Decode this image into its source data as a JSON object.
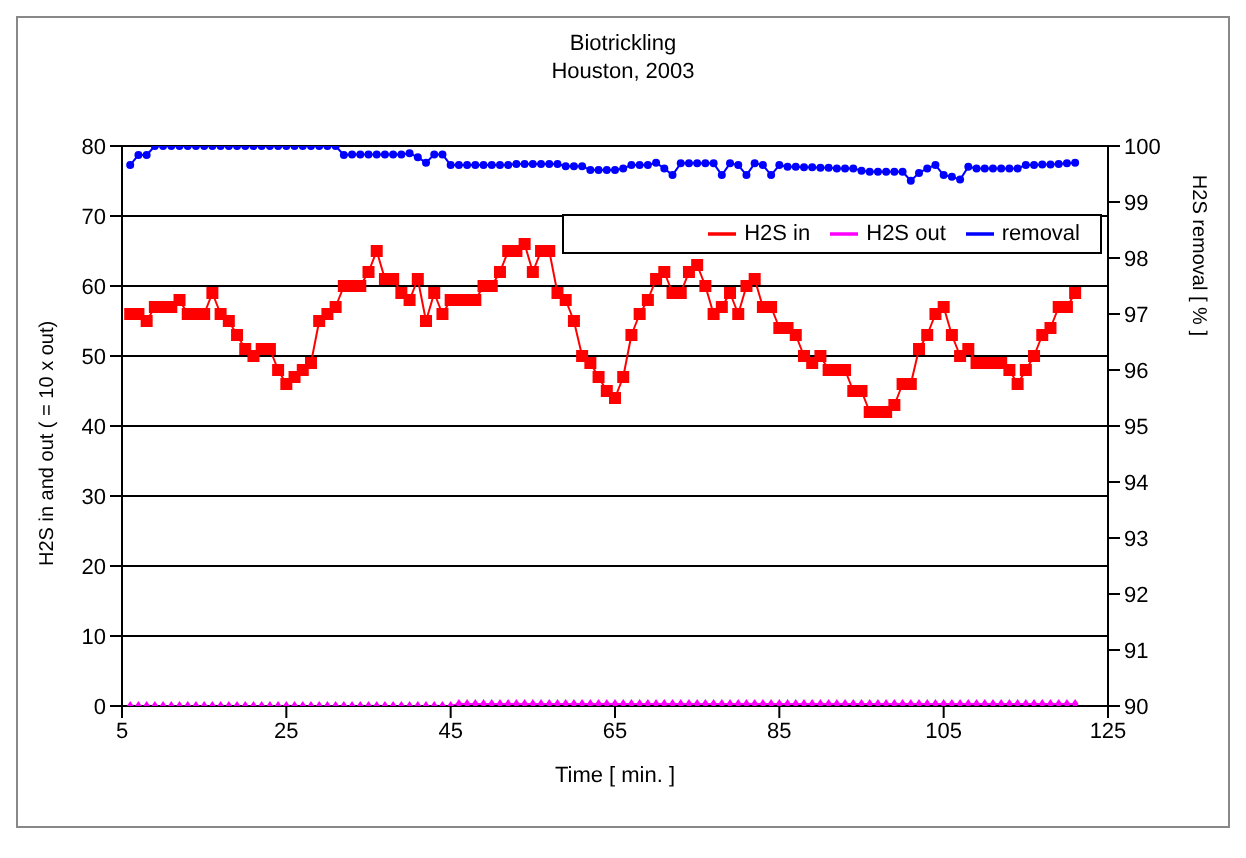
{
  "chart_data": {
    "type": "line",
    "title": "Biotrickling",
    "subtitle": "Houston, 2003",
    "xlabel": "Time [ min. ]",
    "ylabel": "H2S in and out  ( = 10 x out)",
    "y2label": "H2S removal [ % ]",
    "x": [
      6,
      7,
      8,
      9,
      10,
      11,
      12,
      13,
      14,
      15,
      16,
      17,
      18,
      19,
      20,
      21,
      22,
      23,
      24,
      25,
      26,
      27,
      28,
      29,
      30,
      31,
      32,
      33,
      34,
      35,
      36,
      37,
      38,
      39,
      40,
      41,
      42,
      43,
      44,
      45,
      46,
      47,
      48,
      49,
      50,
      51,
      52,
      53,
      54,
      55,
      56,
      57,
      58,
      59,
      60,
      61,
      62,
      63,
      64,
      65,
      66,
      67,
      68,
      69,
      70,
      71,
      72,
      73,
      74,
      75,
      76,
      77,
      78,
      79,
      80,
      81,
      82,
      83,
      84,
      85,
      86,
      87,
      88,
      89,
      90,
      91,
      92,
      93,
      94,
      95,
      96,
      97,
      98,
      99,
      100,
      101,
      102,
      103,
      104,
      105,
      106,
      107,
      108,
      109,
      110,
      111,
      112,
      113,
      114,
      115,
      116,
      117,
      118,
      119,
      120,
      121
    ],
    "series": [
      {
        "name": "H2S in",
        "color": "#ff0000",
        "marker": "square",
        "values": [
          56,
          56,
          55,
          57,
          57,
          57,
          58,
          56,
          56,
          56,
          59,
          56,
          55,
          53,
          51,
          50,
          51,
          51,
          48,
          46,
          47,
          48,
          49,
          55,
          56,
          57,
          60,
          60,
          60,
          62,
          65,
          61,
          61,
          59,
          58,
          61,
          55,
          59,
          56,
          58,
          58,
          58,
          58,
          60,
          60,
          62,
          65,
          65,
          66,
          62,
          65,
          65,
          59,
          58,
          55,
          50,
          49,
          47,
          45,
          44,
          47,
          53,
          56,
          58,
          61,
          62,
          59,
          59,
          62,
          63,
          60,
          56,
          57,
          59,
          56,
          60,
          61,
          57,
          57,
          54,
          54,
          53,
          50,
          49,
          50,
          48,
          48,
          48,
          45,
          45,
          42,
          42,
          42,
          43,
          46,
          46,
          51,
          53,
          56,
          57,
          53,
          50,
          51,
          49,
          49,
          49,
          49,
          48,
          46,
          48,
          50,
          53,
          54,
          57,
          57,
          59
        ]
      },
      {
        "name": "H2S out",
        "color": "#ff00ff",
        "marker": "diamond",
        "values": [
          0,
          0,
          0,
          0,
          0,
          0,
          0,
          0,
          0,
          0,
          0,
          0,
          0,
          0,
          0,
          0,
          0,
          0,
          0,
          0,
          0,
          0,
          0,
          0,
          0,
          0,
          0,
          0,
          0,
          0,
          0,
          0,
          0,
          0,
          0,
          0,
          0,
          0,
          0,
          0,
          0.3,
          0.3,
          0.3,
          0.3,
          0.3,
          0.3,
          0.3,
          0.3,
          0.3,
          0.3,
          0.3,
          0.3,
          0.3,
          0.3,
          0.3,
          0.3,
          0.3,
          0.3,
          0.3,
          0.3,
          0.3,
          0.3,
          0.3,
          0.3,
          0.3,
          0.3,
          0.3,
          0.3,
          0.3,
          0.3,
          0.3,
          0.3,
          0.3,
          0.3,
          0.3,
          0.3,
          0.3,
          0.3,
          0.3,
          0.3,
          0.3,
          0.3,
          0.3,
          0.3,
          0.3,
          0.3,
          0.3,
          0.3,
          0.3,
          0.3,
          0.3,
          0.3,
          0.3,
          0.3,
          0.3,
          0.3,
          0.3,
          0.3,
          0.3,
          0.3,
          0.3,
          0.3,
          0.3,
          0.3,
          0.3,
          0.3,
          0.3,
          0.3,
          0.3,
          0.3,
          0.3,
          0.3,
          0.3,
          0.3,
          0.3,
          0.3
        ]
      },
      {
        "name": "removal",
        "color": "#0000ff",
        "marker": "circle",
        "axis": "y2",
        "values": [
          99.66,
          99.84,
          99.84,
          100,
          100,
          100,
          100,
          100,
          100,
          100,
          100,
          100,
          100,
          100,
          100,
          100,
          100,
          100,
          100,
          100,
          100,
          100,
          100,
          100,
          100,
          100,
          99.84,
          99.85,
          99.85,
          99.85,
          99.85,
          99.85,
          99.85,
          99.85,
          99.87,
          99.8,
          99.7,
          99.85,
          99.85,
          99.66,
          99.66,
          99.66,
          99.66,
          99.66,
          99.66,
          99.66,
          99.66,
          99.68,
          99.68,
          99.68,
          99.68,
          99.68,
          99.68,
          99.64,
          99.64,
          99.64,
          99.57,
          99.57,
          99.57,
          99.57,
          99.6,
          99.66,
          99.66,
          99.66,
          99.7,
          99.6,
          99.48,
          99.69,
          99.69,
          99.69,
          99.69,
          99.69,
          99.48,
          99.69,
          99.66,
          99.48,
          99.69,
          99.66,
          99.48,
          99.66,
          99.63,
          99.63,
          99.62,
          99.62,
          99.61,
          99.61,
          99.6,
          99.6,
          99.6,
          99.56,
          99.54,
          99.54,
          99.54,
          99.54,
          99.54,
          99.38,
          99.52,
          99.6,
          99.66,
          99.48,
          99.45,
          99.4,
          99.63,
          99.6,
          99.6,
          99.6,
          99.6,
          99.6,
          99.6,
          99.66,
          99.66,
          99.67,
          99.67,
          99.68,
          99.69,
          99.7
        ]
      }
    ],
    "xlim": [
      5,
      125
    ],
    "xticks": [
      5,
      25,
      45,
      65,
      85,
      105,
      125
    ],
    "ylim": [
      0,
      80
    ],
    "yticks": [
      0,
      10,
      20,
      30,
      40,
      50,
      60,
      70,
      80
    ],
    "y2lim": [
      90,
      100
    ],
    "y2ticks": [
      90,
      91,
      92,
      93,
      94,
      95,
      96,
      97,
      98,
      99,
      100
    ],
    "grid": "y",
    "legend": "top right",
    "line_style": "solid"
  }
}
